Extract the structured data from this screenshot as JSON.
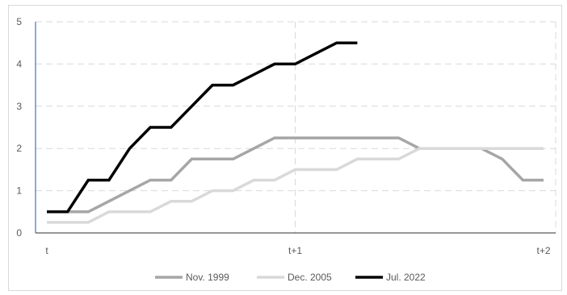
{
  "chart_data": {
    "type": "line",
    "title": "",
    "xlabel": "",
    "ylabel": "",
    "x_tick_labels": [
      "t",
      "t+1",
      "t+2"
    ],
    "y_ticks": [
      0,
      1,
      2,
      3,
      4,
      5
    ],
    "ylim": [
      0,
      5
    ],
    "xlim": [
      0,
      24
    ],
    "grid": "dashed",
    "legend_position": "bottom",
    "series": [
      {
        "name": "Nov. 1999",
        "color": "#a6a6a6",
        "x": [
          0,
          1,
          2,
          3,
          4,
          5,
          6,
          7,
          8,
          9,
          10,
          11,
          12,
          13,
          14,
          15,
          16,
          17,
          18,
          19,
          20,
          21,
          22,
          23,
          24
        ],
        "values": [
          0.5,
          0.5,
          0.5,
          0.75,
          1,
          1.25,
          1.25,
          1.75,
          1.75,
          1.75,
          2,
          2.25,
          2.25,
          2.25,
          2.25,
          2.25,
          2.25,
          2.25,
          2,
          2,
          2,
          2,
          1.75,
          1.25,
          1.25
        ]
      },
      {
        "name": "Dec. 2005",
        "color": "#d9d9d9",
        "x": [
          0,
          1,
          2,
          3,
          4,
          5,
          6,
          7,
          8,
          9,
          10,
          11,
          12,
          13,
          14,
          15,
          16,
          17,
          18,
          19,
          20,
          21,
          22,
          23,
          24
        ],
        "values": [
          0.25,
          0.25,
          0.25,
          0.5,
          0.5,
          0.5,
          0.75,
          0.75,
          1,
          1,
          1.25,
          1.25,
          1.5,
          1.5,
          1.5,
          1.75,
          1.75,
          1.75,
          2,
          2,
          2,
          2,
          2,
          2,
          2
        ]
      },
      {
        "name": "Jul. 2022",
        "color": "#000000",
        "x": [
          0,
          1,
          2,
          3,
          4,
          5,
          6,
          7,
          8,
          9,
          10,
          11,
          12,
          13,
          14,
          15
        ],
        "values": [
          0.5,
          0.5,
          1.25,
          1.25,
          2,
          2.5,
          2.5,
          3,
          3.5,
          3.5,
          3.75,
          4,
          4,
          4.25,
          4.5,
          4.5
        ]
      }
    ]
  }
}
